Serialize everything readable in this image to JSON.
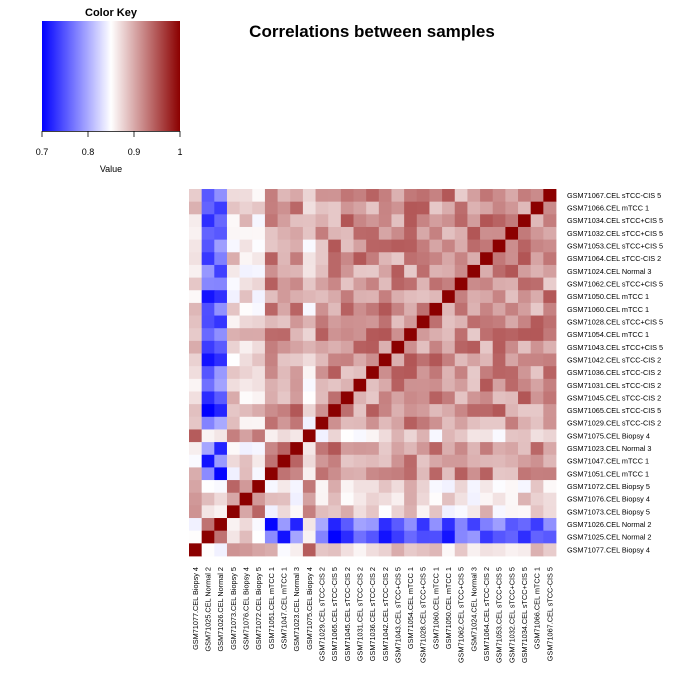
{
  "chart_data": {
    "type": "heatmap",
    "title": "Correlations between samples",
    "color_key": {
      "title": "Color Key",
      "xlabel": "Value",
      "range": [
        0.7,
        1.0
      ],
      "ticks": [
        0.7,
        0.8,
        0.9,
        1.0
      ],
      "tick_labels": [
        "0.7",
        "0.8",
        "0.9",
        "1"
      ],
      "colors": {
        "low": "#0000ff",
        "mid": "#ffffff",
        "high": "#8b0000"
      },
      "midpoint": 0.85
    },
    "row_labels_top_to_bottom": [
      "GSM71067.CEL sTCC-CIS 5",
      "GSM71066.CEL mTCC 1",
      "GSM71034.CEL sTCC+CIS 5",
      "GSM71032.CEL sTCC+CIS 5",
      "GSM71053.CEL sTCC+CIS 5",
      "GSM71064.CEL sTCC-CIS 2",
      "GSM71024.CEL Normal 3",
      "GSM71062.CEL sTCC+CIS 5",
      "GSM71050.CEL mTCC 1",
      "GSM71060.CEL mTCC 1",
      "GSM71028.CEL sTCC+CIS 5",
      "GSM71054.CEL mTCC 1",
      "GSM71043.CEL sTCC+CIS 5",
      "GSM71042.CEL sTCC-CIS 2",
      "GSM71036.CEL sTCC-CIS 2",
      "GSM71031.CEL sTCC-CIS 2",
      "GSM71045.CEL sTCC-CIS 2",
      "GSM71065.CEL sTCC-CIS 5",
      "GSM71029.CEL sTCC-CIS 2",
      "GSM71075.CEL Biopsy 4",
      "GSM71023.CEL Normal 3",
      "GSM71047.CEL mTCC 1",
      "GSM71051.CEL mTCC 1",
      "GSM71072.CEL Biopsy 5",
      "GSM71076.CEL Biopsy 4",
      "GSM71073.CEL Biopsy 5",
      "GSM71026.CEL Normal 2",
      "GSM71025.CEL Normal 2",
      "GSM71077.CEL Biopsy 4"
    ],
    "col_labels_left_to_right": [
      "GSM71077.CEL Biopsy 4",
      "GSM71025.CEL Normal 2",
      "GSM71026.CEL Normal 2",
      "GSM71073.CEL Biopsy 5",
      "GSM71076.CEL Biopsy 4",
      "GSM71072.CEL Biopsy 5",
      "GSM71051.CEL mTCC 1",
      "GSM71047.CEL mTCC 1",
      "GSM71023.CEL Normal 3",
      "GSM71075.CEL Biopsy 4",
      "GSM71029.CEL sTCC-CIS 2",
      "GSM71065.CEL sTCC-CIS 5",
      "GSM71045.CEL sTCC-CIS 2",
      "GSM71031.CEL sTCC-CIS 2",
      "GSM71036.CEL sTCC-CIS 2",
      "GSM71042.CEL sTCC-CIS 2",
      "GSM71043.CEL sTCC+CIS 5",
      "GSM71054.CEL mTCC 1",
      "GSM71028.CEL sTCC+CIS 5",
      "GSM71060.CEL mTCC 1",
      "GSM71050.CEL mTCC 1",
      "GSM71062.CEL sTCC+CIS 5",
      "GSM71024.CEL Normal 3",
      "GSM71064.CEL sTCC-CIS 2",
      "GSM71053.CEL sTCC+CIS 5",
      "GSM71032.CEL sTCC+CIS 5",
      "GSM71034.CEL sTCC+CIS 5",
      "GSM71066.CEL mTCC 1",
      "GSM71067.CEL sTCC-CIS 5"
    ],
    "cell_value_estimates": {
      "diagonal": 1.0,
      "tumor_vs_tumor_range": [
        0.88,
        0.95
      ],
      "normal_vs_tumor_range": [
        0.7,
        0.8
      ],
      "normal_vs_normal_range": [
        0.93,
        0.97
      ],
      "biopsy_vs_tumor_range": [
        0.84,
        0.9
      ],
      "biopsy_vs_biopsy_range": [
        0.9,
        0.95
      ]
    }
  }
}
